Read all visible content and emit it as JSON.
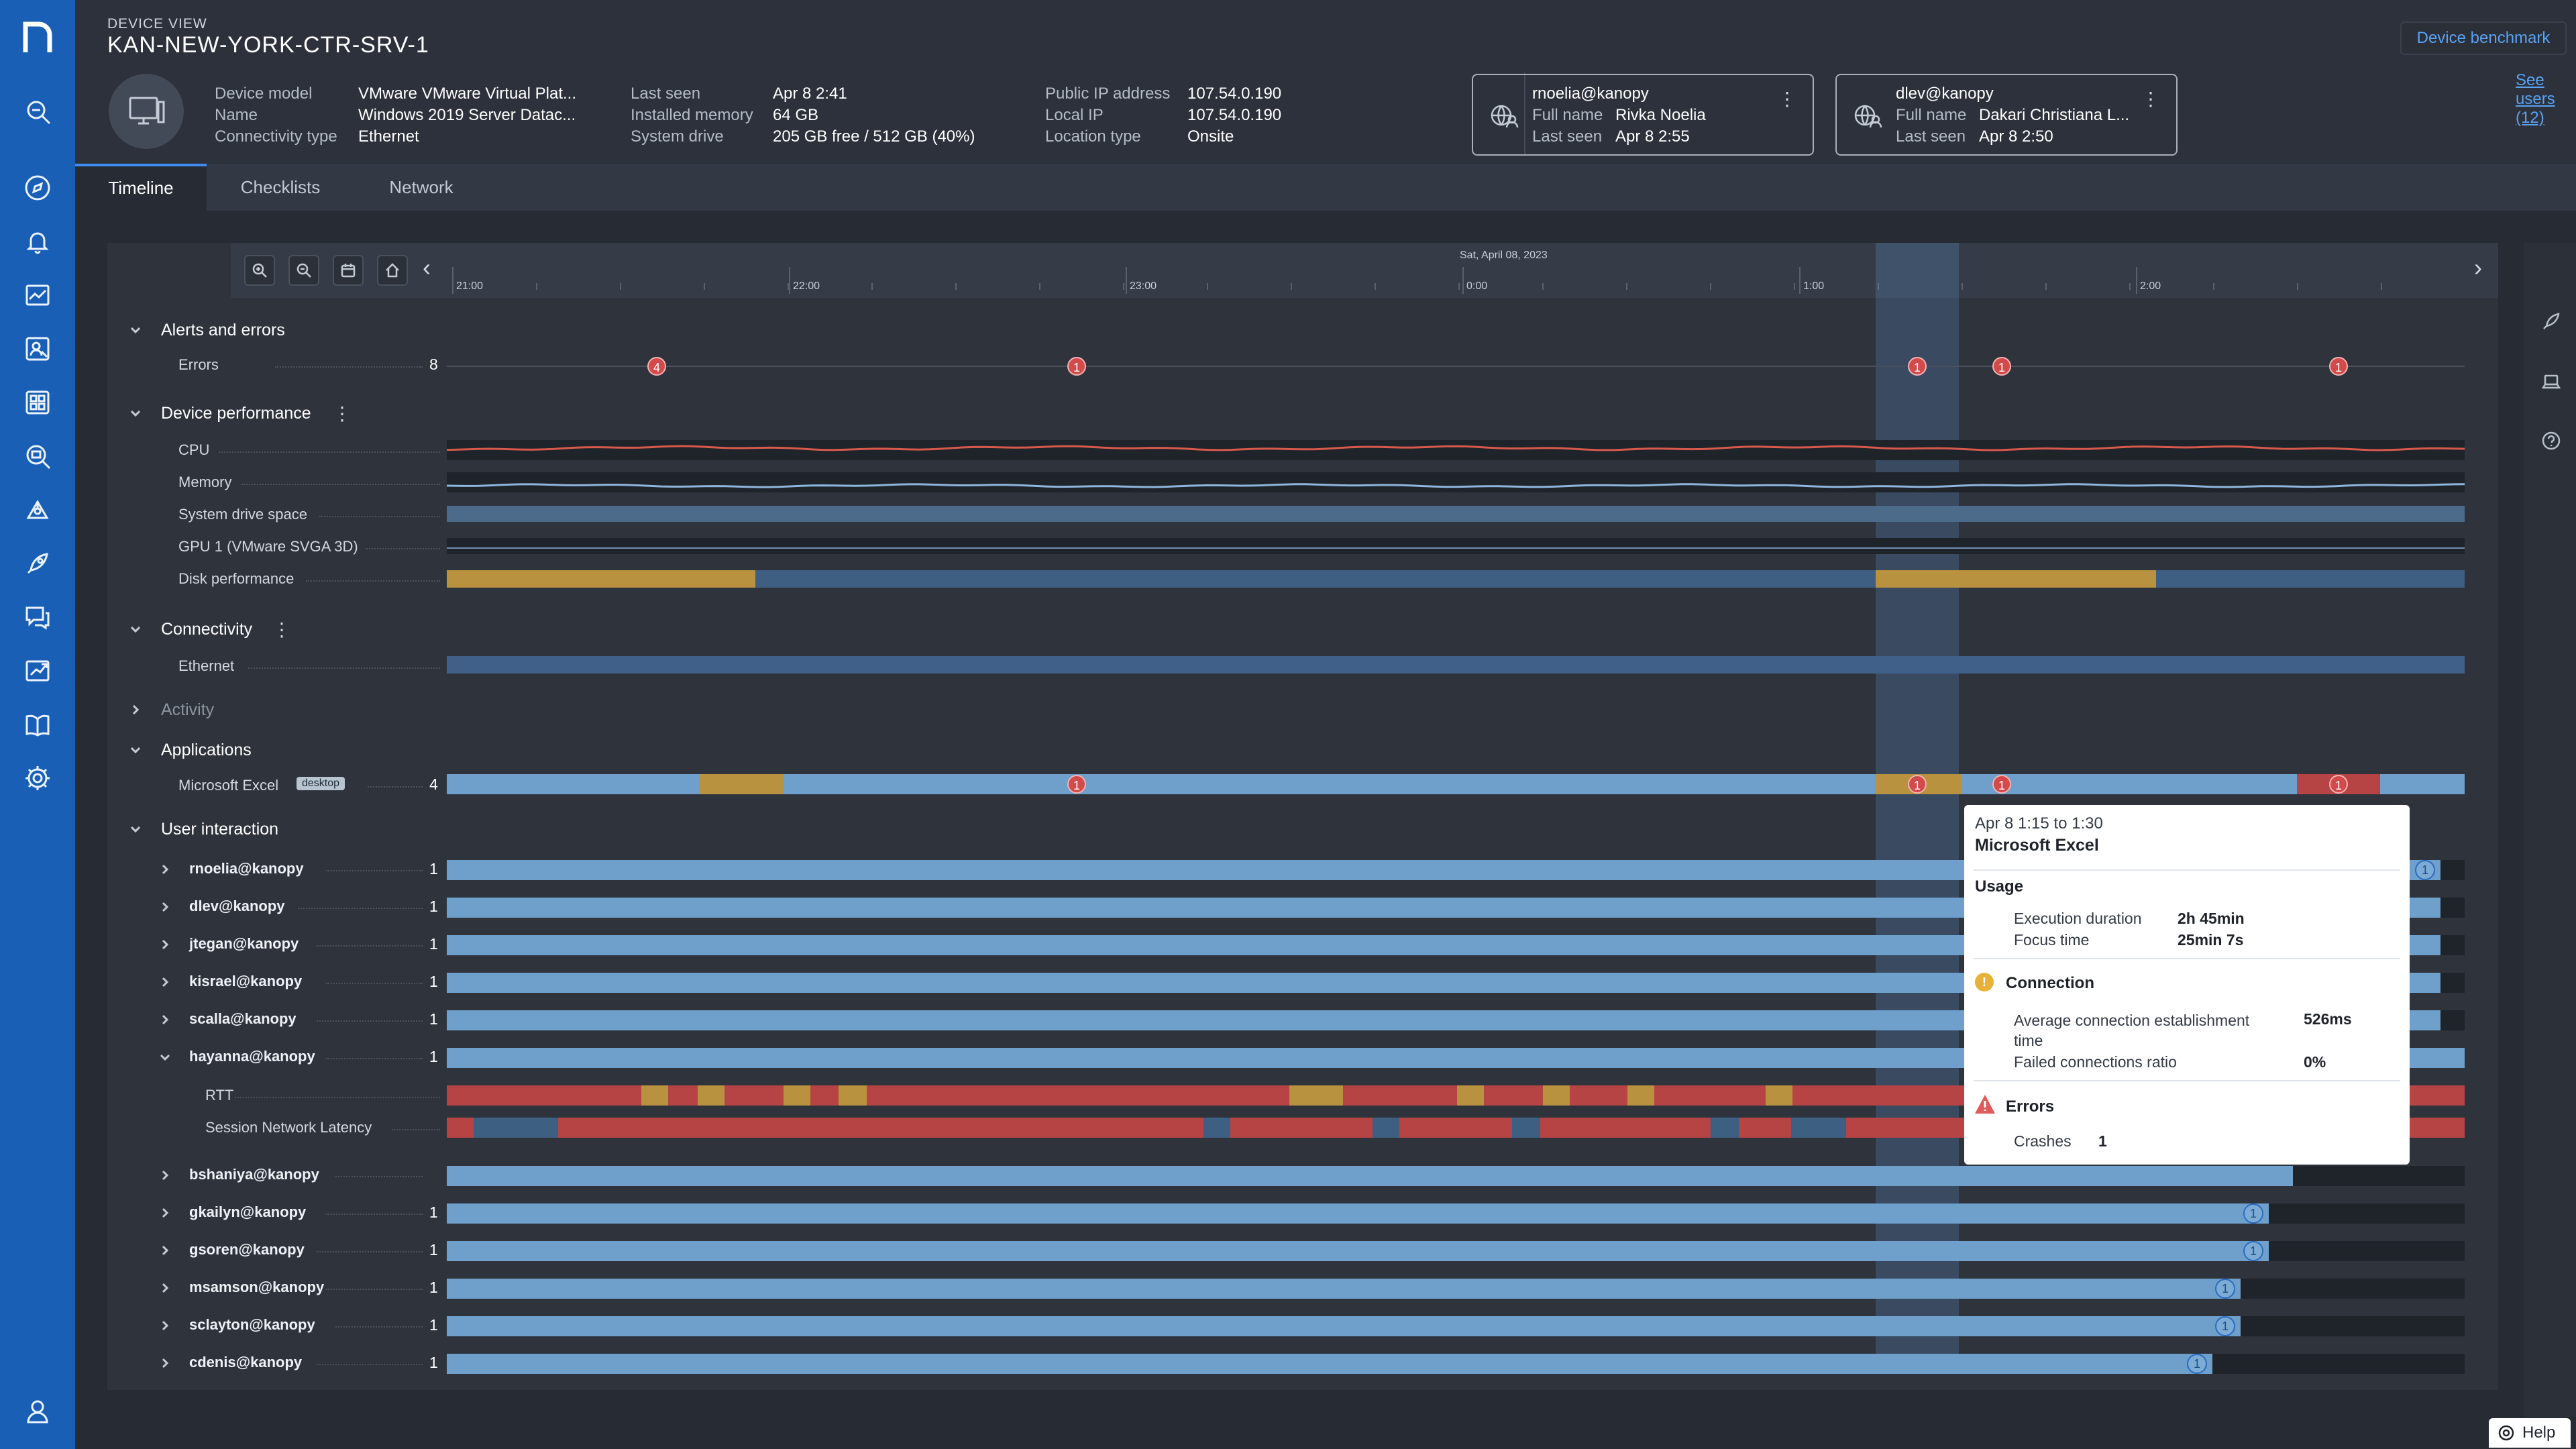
{
  "nav": {
    "logo": "n",
    "icons": [
      "search-icon",
      "compass-icon",
      "bell-icon",
      "dashboard-icon",
      "user-search-icon",
      "grid-icon",
      "device-search-icon",
      "network-icon",
      "rocket-icon",
      "chat-icon",
      "report-icon",
      "book-icon",
      "gear-icon",
      "profile-icon"
    ]
  },
  "header": {
    "section_label": "DEVICE VIEW",
    "device_name": "KAN-NEW-YORK-CTR-SRV-1",
    "benchmark_button": "Device benchmark",
    "see_users": "See users (12)",
    "props": {
      "device_model_label": "Device model",
      "device_model_value": "VMware VMware Virtual Plat...",
      "name_label": "Name",
      "name_value": "Windows 2019 Server Datac...",
      "connectivity_label": "Connectivity type",
      "connectivity_value": "Ethernet",
      "last_seen_label": "Last seen",
      "last_seen_value": "Apr 8 2:41",
      "memory_label": "Installed memory",
      "memory_value": "64 GB",
      "drive_label": "System drive",
      "drive_value": "205 GB free / 512 GB (40%)",
      "public_ip_label": "Public IP address",
      "public_ip_value": "107.54.0.190",
      "local_ip_label": "Local IP",
      "local_ip_value": "107.54.0.190",
      "location_label": "Location type",
      "location_value": "Onsite"
    },
    "users": [
      {
        "name": "rnoelia@kanopy",
        "full_name_label": "Full name",
        "full_name": "Rivka Noelia",
        "last_seen_label": "Last seen",
        "last_seen": "Apr 8 2:55"
      },
      {
        "name": "dlev@kanopy",
        "full_name_label": "Full name",
        "full_name": "Dakari Christiana L...",
        "last_seen_label": "Last seen",
        "last_seen": "Apr 8 2:50"
      }
    ]
  },
  "tabs": [
    "Timeline",
    "Checklists",
    "Network"
  ],
  "timeline": {
    "date_label": "Sat, April 08, 2023",
    "ticks": [
      "21:00",
      "22:00",
      "23:00",
      "0:00",
      "1:00",
      "2:00"
    ]
  },
  "sections": {
    "alerts": "Alerts and errors",
    "errors_label": "Errors",
    "errors_count": "8",
    "error_badges": [
      "4",
      "1",
      "1",
      "1",
      "1"
    ],
    "device_perf": "Device performance",
    "cpu": "CPU",
    "memory": "Memory",
    "drive_space": "System drive space",
    "gpu": "GPU 1 (VMware SVGA 3D)",
    "disk_perf": "Disk performance",
    "connectivity": "Connectivity",
    "ethernet": "Ethernet",
    "activity": "Activity",
    "applications": "Applications",
    "excel": "Microsoft Excel",
    "excel_tag": "desktop",
    "excel_count": "4",
    "excel_badges": [
      "1",
      "1",
      "1",
      "1"
    ],
    "user_interaction": "User interaction"
  },
  "users_rows": [
    {
      "name": "rnoelia@kanopy",
      "count": "1",
      "usage": 0.988,
      "badge": "1"
    },
    {
      "name": "dlev@kanopy",
      "count": "1",
      "usage": 0.988,
      "badge": ""
    },
    {
      "name": "jtegan@kanopy",
      "count": "1",
      "usage": 0.988,
      "badge": ""
    },
    {
      "name": "kisrael@kanopy",
      "count": "1",
      "usage": 0.988,
      "badge": ""
    },
    {
      "name": "scalla@kanopy",
      "count": "1",
      "usage": 0.988,
      "badge": ""
    },
    {
      "name": "hayanna@kanopy",
      "count": "1",
      "usage": 1.0,
      "badge": ""
    },
    {
      "name": "bshaniya@kanopy",
      "count": "",
      "usage": 0.915,
      "badge": ""
    },
    {
      "name": "gkailyn@kanopy",
      "count": "1",
      "usage": 0.903,
      "badge": "1"
    },
    {
      "name": "gsoren@kanopy",
      "count": "1",
      "usage": 0.903,
      "badge": "1"
    },
    {
      "name": "msamson@kanopy",
      "count": "1",
      "usage": 0.889,
      "badge": "1"
    },
    {
      "name": "sclayton@kanopy",
      "count": "1",
      "usage": 0.889,
      "badge": "1"
    },
    {
      "name": "cdenis@kanopy",
      "count": "1",
      "usage": 0.875,
      "badge": "1"
    }
  ],
  "sub_rows": {
    "rtt": "RTT",
    "latency": "Session Network Latency"
  },
  "tooltip": {
    "time": "Apr 8   1:15 to 1:30",
    "app": "Microsoft Excel",
    "usage": "Usage",
    "exec_label": "Execution duration",
    "exec_value": "2h 45min",
    "focus_label": "Focus time",
    "focus_value": "25min 7s",
    "connection": "Connection",
    "avg_conn_label": "Average connection establishment time",
    "avg_conn_value": "526ms",
    "failed_label": "Failed connections ratio",
    "failed_value": "0%",
    "errors": "Errors",
    "crashes_label": "Crashes",
    "crashes_value": "1"
  },
  "help": "Help",
  "colors": {
    "accent": "#1a5fb6",
    "usage_bar": "#6f9fcb",
    "warning": "#b8923e",
    "error": "#b74445",
    "cpu_line": "#d85a4c",
    "memory_line": "#8fb6dd"
  }
}
